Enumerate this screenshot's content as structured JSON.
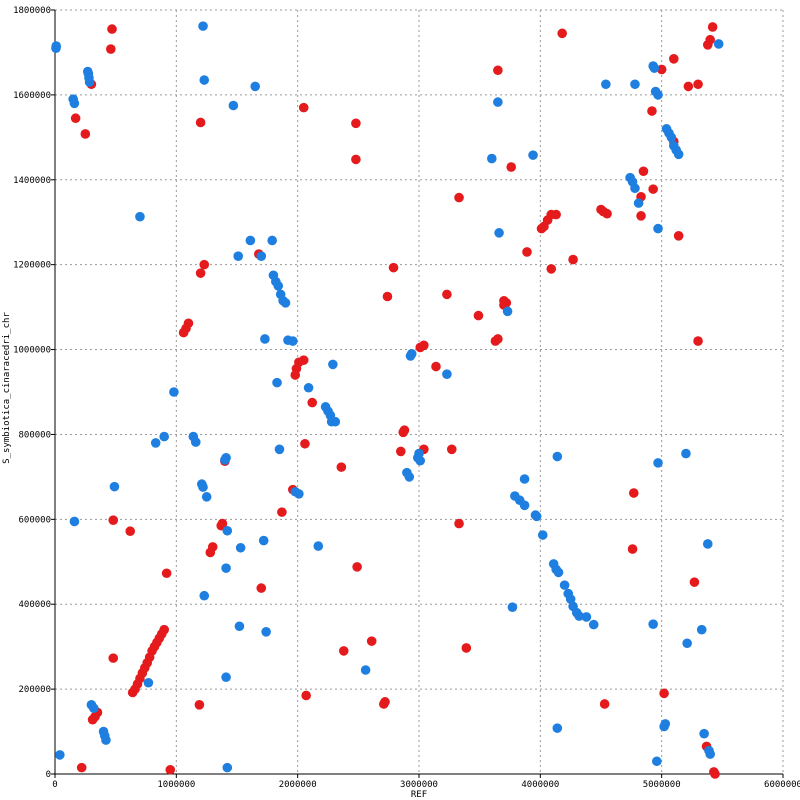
{
  "chart_data": {
    "type": "scatter",
    "xlabel": "REF",
    "ylabel": "S_symbiotica_cinaracedri_chr",
    "xlim": [
      0,
      6000000
    ],
    "ylim": [
      0,
      1800000
    ],
    "grid": true,
    "xticks": [
      {
        "value": 0,
        "label": "0"
      },
      {
        "value": 1000000,
        "label": "1000000"
      },
      {
        "value": 2000000,
        "label": "2000000"
      },
      {
        "value": 3000000,
        "label": "3000000"
      },
      {
        "value": 4000000,
        "label": "4000000"
      },
      {
        "value": 5000000,
        "label": "5000000"
      },
      {
        "value": 6000000,
        "label": "6000000"
      }
    ],
    "yticks": [
      {
        "value": 0,
        "label": "0"
      },
      {
        "value": 200000,
        "label": "200000"
      },
      {
        "value": 400000,
        "label": "400000"
      },
      {
        "value": 600000,
        "label": "600000"
      },
      {
        "value": 800000,
        "label": "800000"
      },
      {
        "value": 1000000,
        "label": "1000000"
      },
      {
        "value": 1200000,
        "label": "1200000"
      },
      {
        "value": 1400000,
        "label": "1400000"
      },
      {
        "value": 1600000,
        "label": "1600000"
      },
      {
        "value": 1800000,
        "label": "1800000"
      }
    ],
    "series": [
      {
        "color": "#e41a1c",
        "points": [
          [
            470000,
            1755000
          ],
          [
            460000,
            1708000
          ],
          [
            300000,
            1625000
          ],
          [
            170000,
            1545000
          ],
          [
            250000,
            1508000
          ],
          [
            1200000,
            1535000
          ],
          [
            2050000,
            1570000
          ],
          [
            2480000,
            1533000
          ],
          [
            2480000,
            1448000
          ],
          [
            3650000,
            1658000
          ],
          [
            4180000,
            1745000
          ],
          [
            5420000,
            1760000
          ],
          [
            5400000,
            1730000
          ],
          [
            5380000,
            1718000
          ],
          [
            5100000,
            1685000
          ],
          [
            5000000,
            1660000
          ],
          [
            5300000,
            1625000
          ],
          [
            5220000,
            1620000
          ],
          [
            4920000,
            1562000
          ],
          [
            5100000,
            1490000
          ],
          [
            4850000,
            1420000
          ],
          [
            4930000,
            1378000
          ],
          [
            4830000,
            1360000
          ],
          [
            4830000,
            1315000
          ],
          [
            5140000,
            1268000
          ],
          [
            4500000,
            1330000
          ],
          [
            4520000,
            1325000
          ],
          [
            4550000,
            1320000
          ],
          [
            4130000,
            1318000
          ],
          [
            4090000,
            1318000
          ],
          [
            4060000,
            1305000
          ],
          [
            4030000,
            1290000
          ],
          [
            4010000,
            1285000
          ],
          [
            3760000,
            1430000
          ],
          [
            3330000,
            1358000
          ],
          [
            3890000,
            1230000
          ],
          [
            4270000,
            1212000
          ],
          [
            4090000,
            1190000
          ],
          [
            1230000,
            1200000
          ],
          [
            1200000,
            1180000
          ],
          [
            1680000,
            1225000
          ],
          [
            2790000,
            1193000
          ],
          [
            2740000,
            1125000
          ],
          [
            3230000,
            1130000
          ],
          [
            3700000,
            1115000
          ],
          [
            3720000,
            1110000
          ],
          [
            3700000,
            1105000
          ],
          [
            3490000,
            1080000
          ],
          [
            3650000,
            1025000
          ],
          [
            3630000,
            1020000
          ],
          [
            5300000,
            1020000
          ],
          [
            1100000,
            1062000
          ],
          [
            1080000,
            1050000
          ],
          [
            1060000,
            1040000
          ],
          [
            2050000,
            975000
          ],
          [
            2010000,
            970000
          ],
          [
            1990000,
            955000
          ],
          [
            1980000,
            940000
          ],
          [
            3040000,
            1010000
          ],
          [
            3010000,
            1005000
          ],
          [
            3140000,
            960000
          ],
          [
            2120000,
            875000
          ],
          [
            2060000,
            778000
          ],
          [
            2880000,
            810000
          ],
          [
            2870000,
            805000
          ],
          [
            2850000,
            760000
          ],
          [
            3040000,
            765000
          ],
          [
            3270000,
            765000
          ],
          [
            2360000,
            723000
          ],
          [
            1400000,
            737000
          ],
          [
            1960000,
            670000
          ],
          [
            1870000,
            617000
          ],
          [
            480000,
            598000
          ],
          [
            620000,
            572000
          ],
          [
            1380000,
            590000
          ],
          [
            1370000,
            585000
          ],
          [
            1300000,
            535000
          ],
          [
            1280000,
            522000
          ],
          [
            3330000,
            590000
          ],
          [
            4770000,
            662000
          ],
          [
            4760000,
            530000
          ],
          [
            2490000,
            488000
          ],
          [
            920000,
            473000
          ],
          [
            1700000,
            438000
          ],
          [
            5270000,
            452000
          ],
          [
            900000,
            340000
          ],
          [
            880000,
            330000
          ],
          [
            860000,
            320000
          ],
          [
            840000,
            310000
          ],
          [
            820000,
            300000
          ],
          [
            800000,
            290000
          ],
          [
            780000,
            275000
          ],
          [
            760000,
            262000
          ],
          [
            740000,
            250000
          ],
          [
            720000,
            238000
          ],
          [
            700000,
            225000
          ],
          [
            680000,
            212000
          ],
          [
            660000,
            200000
          ],
          [
            640000,
            192000
          ],
          [
            480000,
            273000
          ],
          [
            2610000,
            313000
          ],
          [
            2380000,
            290000
          ],
          [
            3390000,
            297000
          ],
          [
            350000,
            145000
          ],
          [
            330000,
            135000
          ],
          [
            310000,
            128000
          ],
          [
            1190000,
            163000
          ],
          [
            2070000,
            185000
          ],
          [
            2720000,
            170000
          ],
          [
            2710000,
            165000
          ],
          [
            4530000,
            165000
          ],
          [
            5020000,
            190000
          ],
          [
            220000,
            15000
          ],
          [
            950000,
            10000
          ],
          [
            5370000,
            65000
          ],
          [
            5430000,
            5000
          ],
          [
            5440000,
            0
          ]
        ]
      },
      {
        "color": "#1f7fe0",
        "points": [
          [
            10000,
            1715000
          ],
          [
            8000,
            1710000
          ],
          [
            150000,
            1590000
          ],
          [
            160000,
            1580000
          ],
          [
            270000,
            1655000
          ],
          [
            275000,
            1650000
          ],
          [
            280000,
            1640000
          ],
          [
            285000,
            1630000
          ],
          [
            1220000,
            1762000
          ],
          [
            1230000,
            1635000
          ],
          [
            1470000,
            1575000
          ],
          [
            1650000,
            1620000
          ],
          [
            4540000,
            1625000
          ],
          [
            4780000,
            1625000
          ],
          [
            4930000,
            1668000
          ],
          [
            4940000,
            1663000
          ],
          [
            4950000,
            1608000
          ],
          [
            4970000,
            1600000
          ],
          [
            5470000,
            1720000
          ],
          [
            3650000,
            1583000
          ],
          [
            3940000,
            1458000
          ],
          [
            3600000,
            1450000
          ],
          [
            5040000,
            1520000
          ],
          [
            5060000,
            1510000
          ],
          [
            5080000,
            1500000
          ],
          [
            5100000,
            1480000
          ],
          [
            5120000,
            1470000
          ],
          [
            5140000,
            1460000
          ],
          [
            4740000,
            1405000
          ],
          [
            4760000,
            1395000
          ],
          [
            4780000,
            1380000
          ],
          [
            4810000,
            1345000
          ],
          [
            4970000,
            1285000
          ],
          [
            700000,
            1313000
          ],
          [
            1610000,
            1257000
          ],
          [
            1790000,
            1257000
          ],
          [
            1510000,
            1220000
          ],
          [
            1700000,
            1220000
          ],
          [
            3660000,
            1275000
          ],
          [
            1800000,
            1175000
          ],
          [
            1820000,
            1160000
          ],
          [
            1840000,
            1150000
          ],
          [
            1860000,
            1130000
          ],
          [
            1880000,
            1115000
          ],
          [
            1900000,
            1110000
          ],
          [
            3730000,
            1090000
          ],
          [
            1730000,
            1025000
          ],
          [
            1920000,
            1022000
          ],
          [
            1960000,
            1020000
          ],
          [
            2290000,
            965000
          ],
          [
            2940000,
            990000
          ],
          [
            2930000,
            985000
          ],
          [
            2090000,
            910000
          ],
          [
            3230000,
            942000
          ],
          [
            980000,
            900000
          ],
          [
            2230000,
            865000
          ],
          [
            2250000,
            855000
          ],
          [
            2270000,
            845000
          ],
          [
            2280000,
            830000
          ],
          [
            2310000,
            830000
          ],
          [
            1830000,
            922000
          ],
          [
            900000,
            795000
          ],
          [
            830000,
            780000
          ],
          [
            1140000,
            795000
          ],
          [
            1160000,
            782000
          ],
          [
            1850000,
            765000
          ],
          [
            1410000,
            745000
          ],
          [
            1400000,
            740000
          ],
          [
            3000000,
            755000
          ],
          [
            2990000,
            745000
          ],
          [
            3010000,
            738000
          ],
          [
            4140000,
            748000
          ],
          [
            4970000,
            733000
          ],
          [
            5200000,
            755000
          ],
          [
            2900000,
            710000
          ],
          [
            2920000,
            700000
          ],
          [
            1980000,
            665000
          ],
          [
            2010000,
            660000
          ],
          [
            3870000,
            695000
          ],
          [
            1210000,
            683000
          ],
          [
            1220000,
            676000
          ],
          [
            1250000,
            653000
          ],
          [
            490000,
            677000
          ],
          [
            3790000,
            655000
          ],
          [
            3830000,
            645000
          ],
          [
            3870000,
            633000
          ],
          [
            3960000,
            610000
          ],
          [
            3970000,
            607000
          ],
          [
            160000,
            595000
          ],
          [
            1420000,
            573000
          ],
          [
            1720000,
            550000
          ],
          [
            1530000,
            533000
          ],
          [
            2170000,
            537000
          ],
          [
            4020000,
            563000
          ],
          [
            5380000,
            542000
          ],
          [
            1410000,
            485000
          ],
          [
            4110000,
            495000
          ],
          [
            4130000,
            482000
          ],
          [
            4150000,
            475000
          ],
          [
            4200000,
            445000
          ],
          [
            4230000,
            425000
          ],
          [
            4250000,
            412000
          ],
          [
            4270000,
            395000
          ],
          [
            4300000,
            380000
          ],
          [
            4320000,
            372000
          ],
          [
            4380000,
            370000
          ],
          [
            4440000,
            352000
          ],
          [
            1230000,
            420000
          ],
          [
            1520000,
            348000
          ],
          [
            1740000,
            335000
          ],
          [
            3770000,
            393000
          ],
          [
            4930000,
            353000
          ],
          [
            5330000,
            340000
          ],
          [
            5210000,
            308000
          ],
          [
            2560000,
            245000
          ],
          [
            770000,
            215000
          ],
          [
            1410000,
            228000
          ],
          [
            300000,
            163000
          ],
          [
            320000,
            155000
          ],
          [
            400000,
            100000
          ],
          [
            410000,
            90000
          ],
          [
            420000,
            80000
          ],
          [
            4140000,
            108000
          ],
          [
            5030000,
            118000
          ],
          [
            5020000,
            112000
          ],
          [
            5350000,
            95000
          ],
          [
            5390000,
            55000
          ],
          [
            5400000,
            47000
          ],
          [
            40000,
            45000
          ],
          [
            1420000,
            15000
          ],
          [
            4960000,
            30000
          ]
        ]
      }
    ]
  }
}
